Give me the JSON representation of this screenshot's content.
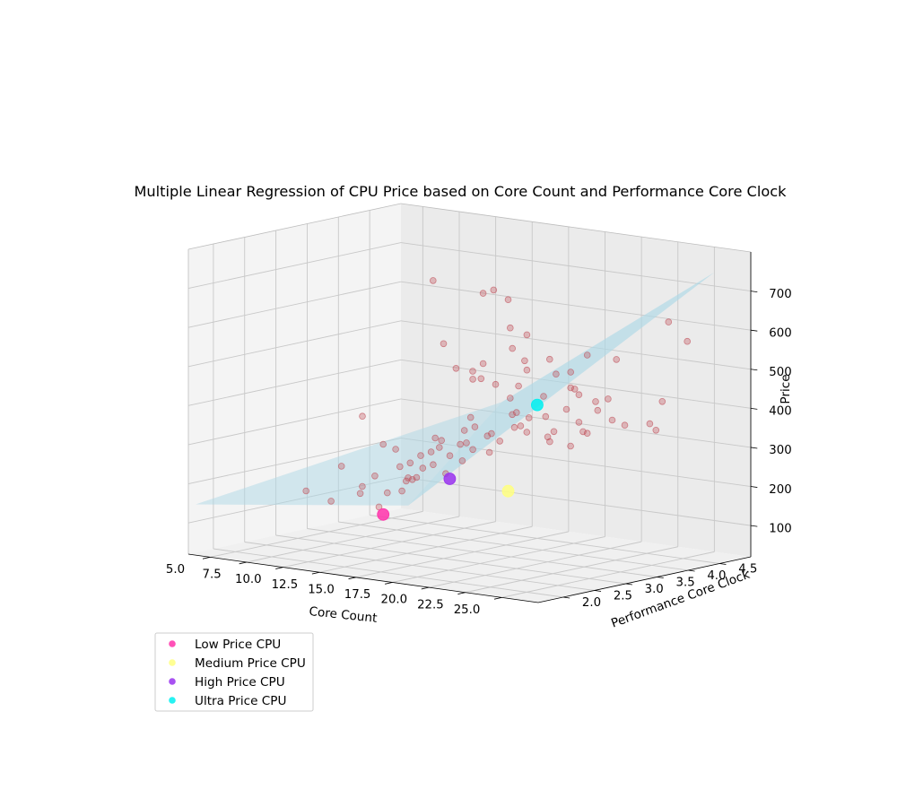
{
  "chart_data": {
    "type": "scatter",
    "projection": "3d",
    "title": "Multiple Linear Regression of CPU Price based on Core Count and Performance Core Clock",
    "xlabel": "Core Count",
    "ylabel": "Performance Core Clock",
    "zlabel": "Price",
    "x_ticks": [
      "5.0",
      "7.5",
      "10.0",
      "12.5",
      "15.0",
      "17.5",
      "20.0",
      "22.5",
      "25.0"
    ],
    "y_ticks": [
      "2.0",
      "2.5",
      "3.0",
      "3.5",
      "4.0",
      "4.5"
    ],
    "z_ticks": [
      "100",
      "200",
      "300",
      "400",
      "500",
      "600",
      "700"
    ],
    "grid": true,
    "legend_position": "lower-left",
    "colors": {
      "cpu_points": "#c0505a",
      "regression_plane": "#add8e6",
      "low": "#ff33aa",
      "medium": "#ffff80",
      "high": "#9933ee",
      "ultra": "#00f0f0"
    },
    "regression_plane": {
      "description": "fitted Price = b0 + b1*Core Count + b2*Performance Core Clock",
      "corner_prices": [
        30,
        150,
        520,
        735
      ]
    },
    "series": [
      {
        "name": "",
        "role": "data",
        "points": [
          [
            6,
            2.9,
            150
          ],
          [
            6,
            3.3,
            110
          ],
          [
            8,
            3.0,
            220
          ],
          [
            8,
            3.3,
            140
          ],
          [
            8,
            3.6,
            95
          ],
          [
            6,
            3.8,
            310
          ],
          [
            7,
            3.9,
            240
          ],
          [
            7,
            4.2,
            110
          ],
          [
            8,
            4.2,
            150
          ],
          [
            6,
            4.5,
            120
          ],
          [
            9,
            3.1,
            170
          ],
          [
            9,
            3.3,
            190
          ],
          [
            9,
            3.5,
            140
          ],
          [
            9,
            3.7,
            200
          ],
          [
            9,
            3.9,
            160
          ],
          [
            10,
            3.4,
            260
          ],
          [
            10,
            3.6,
            180
          ],
          [
            10,
            3.8,
            230
          ],
          [
            10,
            4.0,
            200
          ],
          [
            10,
            4.2,
            170
          ],
          [
            10,
            4.6,
            300
          ],
          [
            11,
            3.4,
            230
          ],
          [
            11,
            3.6,
            210
          ],
          [
            11,
            3.8,
            280
          ],
          [
            11,
            4.2,
            250
          ],
          [
            11,
            4.4,
            230
          ],
          [
            12,
            3.5,
            260
          ],
          [
            12,
            3.8,
            240
          ],
          [
            12,
            4.0,
            220
          ],
          [
            12,
            4.2,
            300
          ],
          [
            12,
            4.4,
            270
          ],
          [
            12,
            4.6,
            250
          ],
          [
            13,
            3.4,
            280
          ],
          [
            13,
            3.8,
            310
          ],
          [
            13,
            4.2,
            240
          ],
          [
            13,
            4.6,
            290
          ],
          [
            14,
            3.2,
            310
          ],
          [
            14,
            3.6,
            290
          ],
          [
            14,
            4.0,
            300
          ],
          [
            14,
            4.4,
            340
          ],
          [
            14,
            4.6,
            320
          ],
          [
            12,
            4.3,
            420
          ],
          [
            11,
            4.4,
            410
          ],
          [
            12,
            3.7,
            530
          ],
          [
            12,
            3.9,
            460
          ],
          [
            14,
            3.7,
            470
          ],
          [
            13,
            4.8,
            430
          ],
          [
            13,
            4.8,
            520
          ],
          [
            14,
            4.3,
            560
          ],
          [
            12,
            4.8,
            480
          ],
          [
            12,
            4.5,
            640
          ],
          [
            15,
            4.8,
            430
          ],
          [
            16,
            3.4,
            510
          ],
          [
            16,
            3.6,
            450
          ],
          [
            15,
            4.2,
            420
          ],
          [
            16,
            4.0,
            330
          ],
          [
            16,
            4.4,
            340
          ],
          [
            15,
            4.6,
            380
          ],
          [
            16,
            4.8,
            440
          ],
          [
            16,
            4.8,
            400
          ],
          [
            17,
            3.6,
            420
          ],
          [
            18,
            3.4,
            390
          ],
          [
            17,
            4.2,
            300
          ],
          [
            18,
            4.0,
            300
          ],
          [
            16,
            2.6,
            750
          ],
          [
            16,
            3.4,
            690
          ],
          [
            16,
            3.8,
            660
          ],
          [
            19,
            3.4,
            350
          ],
          [
            20,
            3.6,
            350
          ],
          [
            20,
            4.0,
            360
          ],
          [
            20,
            4.3,
            380
          ],
          [
            20,
            4.6,
            500
          ],
          [
            20,
            3.8,
            400
          ],
          [
            22,
            3.4,
            330
          ],
          [
            22,
            3.6,
            360
          ],
          [
            22,
            3.8,
            430
          ],
          [
            22,
            4.0,
            430
          ],
          [
            24,
            3.2,
            380
          ],
          [
            24,
            3.0,
            500
          ],
          [
            24,
            3.6,
            400
          ],
          [
            24,
            3.2,
            580
          ],
          [
            24,
            3.8,
            380
          ],
          [
            24,
            4.2,
            370
          ],
          [
            24,
            4.5,
            620
          ],
          [
            24,
            4.8,
            560
          ],
          [
            24,
            2.2,
            600
          ],
          [
            24,
            2.6,
            590
          ],
          [
            23,
            3.3,
            470
          ],
          [
            24,
            4.4,
            420
          ],
          [
            24,
            4.3,
            350
          ]
        ]
      },
      {
        "name": "Low Price CPU",
        "marker": "low",
        "points": [
          [
            10,
            3.2,
            100
          ]
        ]
      },
      {
        "name": "Medium Price CPU",
        "marker": "medium",
        "points": [
          [
            16,
            3.8,
            170
          ]
        ]
      },
      {
        "name": "High Price CPU",
        "marker": "high",
        "points": [
          [
            18,
            2.4,
            260
          ]
        ]
      },
      {
        "name": "Ultra Price CPU",
        "marker": "ultra",
        "points": [
          [
            24,
            2.4,
            480
          ]
        ]
      }
    ]
  }
}
